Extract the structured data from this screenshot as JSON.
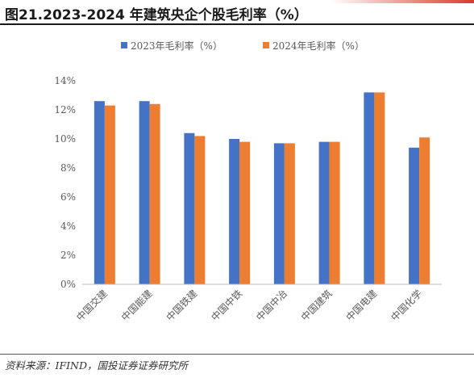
{
  "header": {
    "title": "图21.2023-2024 年建筑央企个股毛利率（%）"
  },
  "colors": {
    "series_2023": "#4472c4",
    "series_2024": "#ed7d31",
    "accent": "#d93a2b"
  },
  "chart_data": {
    "type": "bar",
    "title": "",
    "xlabel": "",
    "ylabel": "",
    "ylim": [
      0,
      14
    ],
    "yticks": [
      "0%",
      "2%",
      "4%",
      "6%",
      "8%",
      "10%",
      "12%",
      "14%"
    ],
    "grid": false,
    "legend_position": "top",
    "categories": [
      "中国交建",
      "中国能建",
      "中国铁建",
      "中国中铁",
      "中国中冶",
      "中国建筑",
      "中国电建",
      "中国化学"
    ],
    "series": [
      {
        "name": "2023年毛利率（%）",
        "values": [
          12.6,
          12.6,
          10.4,
          10.0,
          9.7,
          9.8,
          13.2,
          9.4
        ]
      },
      {
        "name": "2024年毛利率（%）",
        "values": [
          12.3,
          12.4,
          10.2,
          9.8,
          9.7,
          9.8,
          13.2,
          10.1
        ]
      }
    ]
  },
  "footer": {
    "source": "资料来源：IFIND，国投证券证券研究所"
  }
}
